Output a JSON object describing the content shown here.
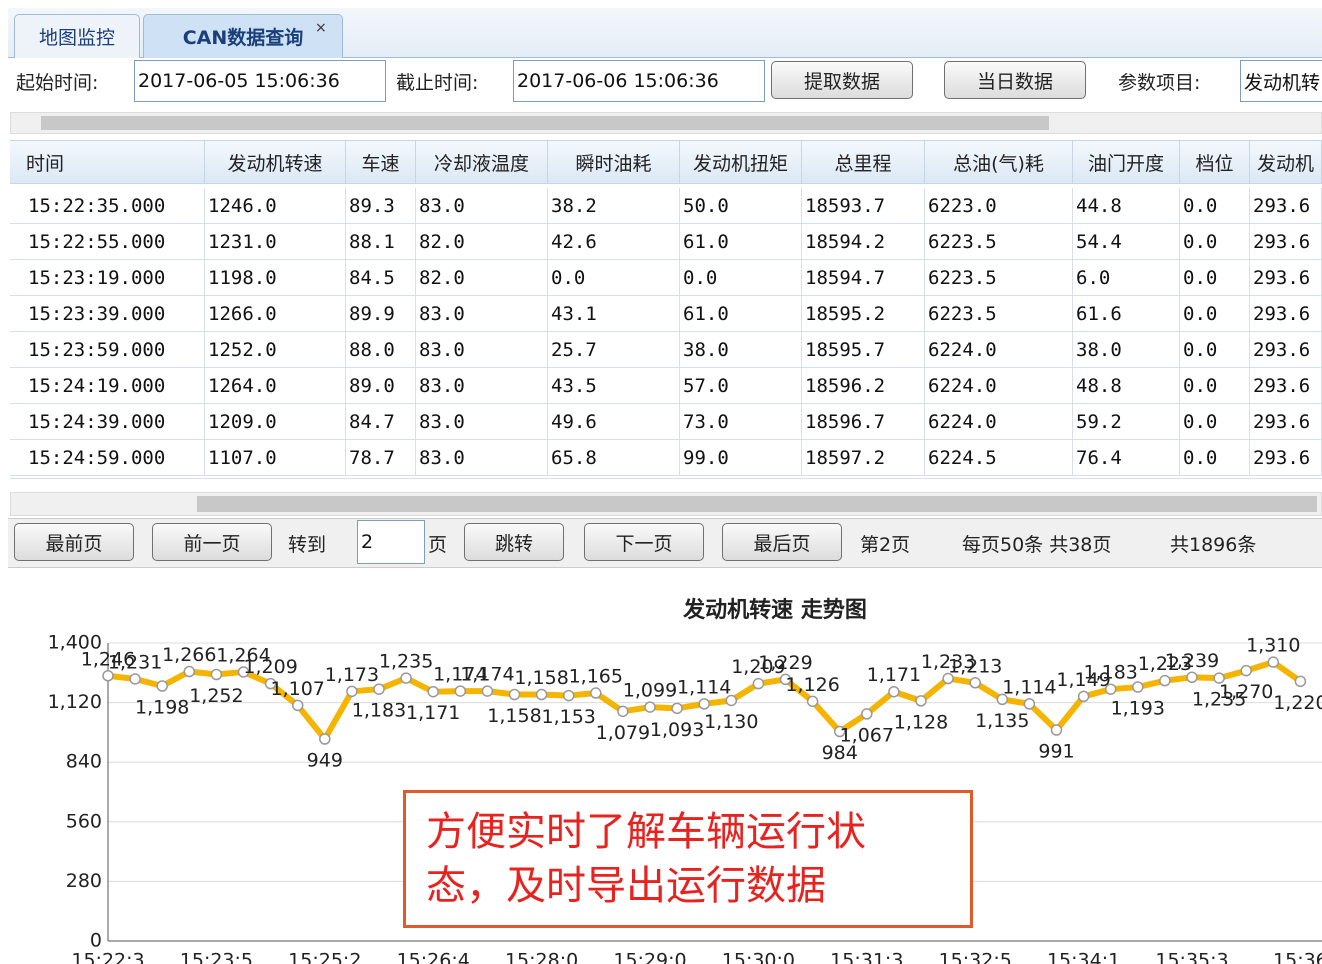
{
  "tabs": [
    {
      "label": "地图监控"
    },
    {
      "label": "CAN数据查询",
      "close": "×"
    }
  ],
  "query": {
    "start_label": "起始时间:",
    "start_value": "2017-06-05 15:06:36",
    "end_label": "截止时间:",
    "end_value": "2017-06-06 15:06:36",
    "buttons": [
      "提取数据",
      "当日数据"
    ],
    "param_label": "参数项目:",
    "param_value": "发动机转"
  },
  "table": {
    "columns": [
      "时间",
      "发动机转速",
      "车速",
      "冷却液温度",
      "瞬时油耗",
      "发动机扭矩",
      "总里程",
      "总油(气)耗",
      "油门开度",
      "档位",
      "发动机"
    ],
    "rows": [
      [
        "15:22:35.000",
        "1246.0",
        "89.3",
        "83.0",
        "38.2",
        "50.0",
        "18593.7",
        "6223.0",
        "44.8",
        "0.0",
        "293.6"
      ],
      [
        "15:22:55.000",
        "1231.0",
        "88.1",
        "82.0",
        "42.6",
        "61.0",
        "18594.2",
        "6223.5",
        "54.4",
        "0.0",
        "293.6"
      ],
      [
        "15:23:19.000",
        "1198.0",
        "84.5",
        "82.0",
        "0.0",
        "0.0",
        "18594.7",
        "6223.5",
        "6.0",
        "0.0",
        "293.6"
      ],
      [
        "15:23:39.000",
        "1266.0",
        "89.9",
        "83.0",
        "43.1",
        "61.0",
        "18595.2",
        "6223.5",
        "61.6",
        "0.0",
        "293.6"
      ],
      [
        "15:23:59.000",
        "1252.0",
        "88.0",
        "83.0",
        "25.7",
        "38.0",
        "18595.7",
        "6224.0",
        "38.0",
        "0.0",
        "293.6"
      ],
      [
        "15:24:19.000",
        "1264.0",
        "89.0",
        "83.0",
        "43.5",
        "57.0",
        "18596.2",
        "6224.0",
        "48.8",
        "0.0",
        "293.6"
      ],
      [
        "15:24:39.000",
        "1209.0",
        "84.7",
        "83.0",
        "49.6",
        "73.0",
        "18596.7",
        "6224.0",
        "59.2",
        "0.0",
        "293.6"
      ],
      [
        "15:24:59.000",
        "1107.0",
        "78.7",
        "83.0",
        "65.8",
        "99.0",
        "18597.2",
        "6224.5",
        "76.4",
        "0.0",
        "293.6"
      ]
    ]
  },
  "pagination": {
    "first": "最前页",
    "prev": "前一页",
    "goto": "转到",
    "page_input": "2",
    "page_unit": "页",
    "jump": "跳转",
    "next": "下一页",
    "last": "最后页",
    "current": "第2页",
    "per_page": "每页50条 共38页",
    "total": "共1896条"
  },
  "chart_data": {
    "type": "line",
    "title": "发动机转速 走势图",
    "categories": [
      "15:22:3",
      null,
      null,
      null,
      "15:23:5",
      null,
      null,
      null,
      "15:25:2",
      null,
      null,
      null,
      "15:26:4",
      null,
      null,
      null,
      "15:28:0",
      null,
      null,
      null,
      "15:29:0",
      null,
      null,
      null,
      "15:30:0",
      null,
      null,
      null,
      "15:31:3",
      null,
      null,
      null,
      "15:32:5",
      null,
      null,
      null,
      "15:34:1",
      null,
      null,
      null,
      "15:35:3",
      null,
      null,
      null,
      "15:36"
    ],
    "series": [
      {
        "name": "发动机转速",
        "color": "#f5b400",
        "values": [
          1246,
          1231,
          1198,
          1266,
          1252,
          1264,
          1209,
          1107,
          949,
          1173,
          1183,
          1235,
          1171,
          1174,
          1174,
          1158,
          1158,
          1153,
          1165,
          1079,
          1099,
          1093,
          1114,
          1130,
          1209,
          1229,
          1126,
          984,
          1067,
          1171,
          1128,
          1233,
          1213,
          1135,
          1114,
          991,
          1149,
          1183,
          1193,
          1223,
          1239,
          1235,
          1270,
          1310,
          1220
        ],
        "value_labels": [
          "1,246",
          "1,231",
          "1,198",
          "1,266",
          "1,252",
          "1,264",
          "1,209",
          "1,107",
          "949",
          "1,173",
          "1,183",
          "1,235",
          "1,171",
          "1,174",
          "1,174",
          "1,158",
          "1,158",
          "1,153",
          "1,165",
          "1,079",
          "1,099",
          "1,093",
          "1,114",
          "1,130",
          "1,209",
          "1,229",
          "1,126",
          "984",
          "1,067",
          "1,171",
          "1,128",
          "1,233",
          "1,213",
          "1,135",
          "1,114",
          "991",
          "1,149",
          "1,183",
          "1,193",
          "1,223",
          "1,239",
          "1,235",
          "1,270",
          "1,310",
          "1,220"
        ]
      }
    ],
    "ylim": [
      0,
      1400
    ],
    "yticks": [
      0,
      280,
      560,
      840,
      {
        "value": 1120,
        "label": "1,120"
      },
      {
        "value": 1400,
        "label": "1,400"
      }
    ],
    "grid": true,
    "annotation": [
      "方便实时了解车辆运行状",
      "态，及时导出运行数据"
    ]
  }
}
